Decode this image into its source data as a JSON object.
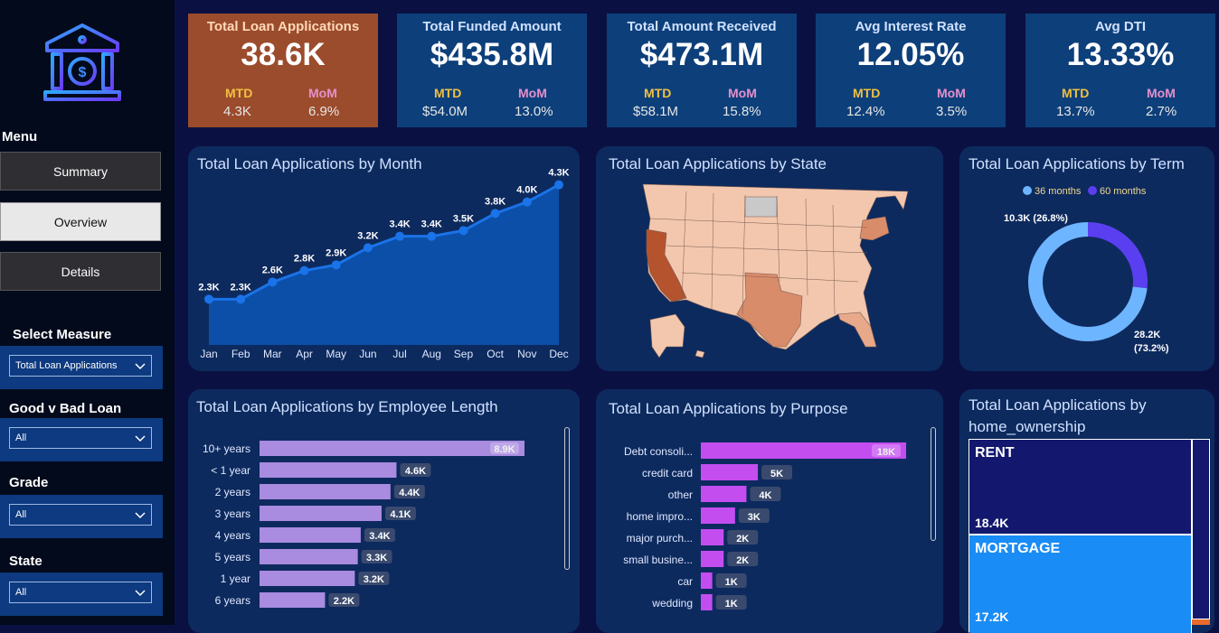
{
  "menu": {
    "title": "Menu",
    "buttons": [
      {
        "label": "Summary"
      },
      {
        "label": "Overview"
      },
      {
        "label": "Details"
      }
    ]
  },
  "slicers": [
    {
      "label": "Select Measure",
      "value": "Total Loan Applications"
    },
    {
      "label": "Good v Bad Loan",
      "value": "All"
    },
    {
      "label": "Grade",
      "value": "All"
    },
    {
      "label": "State",
      "value": "All"
    }
  ],
  "kpis": [
    {
      "title": "Total Loan Applications",
      "value": "38.6K",
      "mtd_label": "MTD",
      "mtd": "4.3K",
      "mom_label": "MoM",
      "mom": "6.9%"
    },
    {
      "title": "Total Funded Amount",
      "value": "$435.8M",
      "mtd_label": "MTD",
      "mtd": "$54.0M",
      "mom_label": "MoM",
      "mom": "13.0%"
    },
    {
      "title": "Total Amount Received",
      "value": "$473.1M",
      "mtd_label": "MTD",
      "mtd": "$58.1M",
      "mom_label": "MoM",
      "mom": "15.8%"
    },
    {
      "title": "Avg Interest Rate",
      "value": "12.05%",
      "mtd_label": "MTD",
      "mtd": "12.4%",
      "mom_label": "MoM",
      "mom": "3.5%"
    },
    {
      "title": "Avg DTI",
      "value": "13.33%",
      "mtd_label": "MTD",
      "mtd": "13.7%",
      "mom_label": "MoM",
      "mom": "2.7%"
    }
  ],
  "colors": {
    "accent": "#1a73e8",
    "kpi_highlight": "#9b4c2c",
    "bar_emp": "#a98be0",
    "bar_purpose": "#c44df0",
    "rent": "#13186e",
    "mortgage": "#1a8cf5"
  },
  "cards": {
    "month": "Total Loan Applications by Month",
    "state": "Total Loan Applications by State",
    "term": "Total Loan Applications by Term",
    "emp": "Total Loan Applications by Employee Length",
    "purpose": "Total Loan Applications by Purpose",
    "home_line1": "Total Loan Applications by",
    "home_line2": "home_ownership"
  },
  "chart_data": [
    {
      "type": "area",
      "title": "Total Loan Applications by Month",
      "categories": [
        "Jan",
        "Feb",
        "Mar",
        "Apr",
        "May",
        "Jun",
        "Jul",
        "Aug",
        "Sep",
        "Oct",
        "Nov",
        "Dec"
      ],
      "values": [
        2.3,
        2.3,
        2.6,
        2.8,
        2.9,
        3.2,
        3.4,
        3.4,
        3.5,
        3.8,
        4.0,
        4.3
      ],
      "labels": [
        "2.3K",
        "2.3K",
        "2.6K",
        "2.8K",
        "2.9K",
        "3.2K",
        "3.4K",
        "3.4K",
        "3.5K",
        "3.8K",
        "4.0K",
        "4.3K"
      ]
    },
    {
      "type": "pie",
      "title": "Total Loan Applications by Term",
      "legend": [
        "36 months",
        "60 months"
      ],
      "values": [
        28.2,
        10.3
      ],
      "labels": [
        "28.2K",
        "10.3K (26.8%)"
      ],
      "pct_labels": [
        "(73.2%)",
        ""
      ],
      "colors": [
        "#6eb5ff",
        "#5a3ff0"
      ]
    },
    {
      "type": "bar",
      "title": "Total Loan Applications by Employee Length",
      "categories": [
        "10+ years",
        "< 1 year",
        "2 years",
        "3 years",
        "4 years",
        "5 years",
        "1 year",
        "6 years"
      ],
      "values": [
        8.9,
        4.6,
        4.4,
        4.1,
        3.4,
        3.3,
        3.2,
        2.2
      ],
      "labels": [
        "8.9K",
        "4.6K",
        "4.4K",
        "4.1K",
        "3.4K",
        "3.3K",
        "3.2K",
        "2.2K"
      ]
    },
    {
      "type": "bar",
      "title": "Total Loan Applications by Purpose",
      "categories": [
        "Debt consoli...",
        "credit card",
        "other",
        "home impro...",
        "major purch...",
        "small busine...",
        "car",
        "wedding"
      ],
      "values": [
        18,
        5,
        4,
        3,
        2,
        2,
        1,
        1
      ],
      "labels": [
        "18K",
        "5K",
        "4K",
        "3K",
        "2K",
        "2K",
        "1K",
        "1K"
      ]
    },
    {
      "type": "heatmap",
      "title": "Total Loan Applications by home_ownership",
      "categories": [
        "RENT",
        "MORTGAGE"
      ],
      "values": [
        18.4,
        17.2
      ],
      "labels": [
        "18.4K",
        "17.2K"
      ]
    }
  ]
}
